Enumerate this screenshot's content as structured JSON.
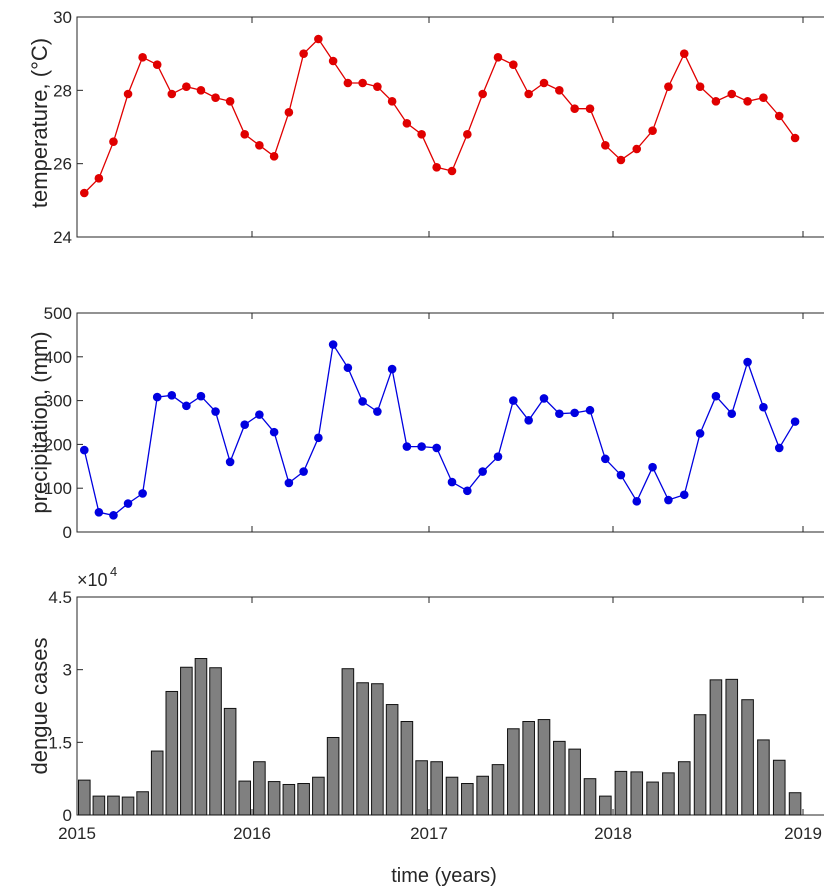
{
  "figure": {
    "xlabel": "time (years)",
    "x_tick_labels": [
      "2015",
      "2016",
      "2017",
      "2018",
      "2019"
    ]
  },
  "chart_data": [
    {
      "type": "line",
      "ylabel": "temperature, (°C)",
      "ylim": [
        24,
        30
      ],
      "yticks": [
        24,
        26,
        28,
        30
      ],
      "y_tick_labels": [
        "24",
        "26",
        "28",
        "30"
      ],
      "color": "#e00000",
      "x_axis": "months from Jan 2015 to Dec 2018 (monthly)",
      "values": [
        25.2,
        25.6,
        26.6,
        27.9,
        28.9,
        28.7,
        27.9,
        28.1,
        28.0,
        27.8,
        27.7,
        26.8,
        26.5,
        26.2,
        27.4,
        29.0,
        29.4,
        28.8,
        28.2,
        28.2,
        28.1,
        27.7,
        27.1,
        26.8,
        25.9,
        25.8,
        26.8,
        27.9,
        28.9,
        28.7,
        27.9,
        28.2,
        28.0,
        27.5,
        27.5,
        26.5,
        26.1,
        26.4,
        26.9,
        28.1,
        29.0,
        28.1,
        27.7,
        27.9,
        27.7,
        27.8,
        27.3,
        26.7
      ]
    },
    {
      "type": "line",
      "ylabel": "precipitation, (mm)",
      "ylim": [
        0,
        500
      ],
      "yticks": [
        0,
        100,
        200,
        300,
        400,
        500
      ],
      "y_tick_labels": [
        "0",
        "100",
        "200",
        "300",
        "400",
        "500"
      ],
      "color": "#0000e0",
      "values": [
        187,
        45,
        38,
        65,
        88,
        308,
        312,
        288,
        310,
        275,
        160,
        245,
        268,
        228,
        112,
        138,
        215,
        428,
        375,
        298,
        275,
        372,
        195,
        195,
        192,
        114,
        94,
        138,
        172,
        300,
        255,
        305,
        270,
        272,
        278,
        167,
        130,
        70,
        148,
        73,
        85,
        225,
        310,
        270,
        388,
        285,
        192,
        252
      ]
    },
    {
      "type": "bar",
      "ylabel": "dengue cases",
      "ylim": [
        0,
        45000
      ],
      "yticks": [
        0,
        15000,
        30000,
        45000
      ],
      "y_tick_labels": [
        "0",
        "1.5",
        "3",
        "4.5"
      ],
      "exponent_label": "×10",
      "exponent_power": "4",
      "color": "#808080",
      "values": [
        7200,
        3900,
        3900,
        3700,
        4800,
        13200,
        25500,
        30500,
        32300,
        30400,
        22000,
        7000,
        11000,
        6900,
        6300,
        6500,
        7800,
        16000,
        30200,
        27300,
        27100,
        22800,
        19300,
        11200,
        11000,
        7800,
        6500,
        8000,
        10400,
        17800,
        19300,
        19700,
        15200,
        13600,
        7500,
        3900,
        9000,
        8900,
        6800,
        8700,
        11000,
        20700,
        27900,
        28000,
        23800,
        15500,
        11300,
        4600
      ]
    }
  ]
}
